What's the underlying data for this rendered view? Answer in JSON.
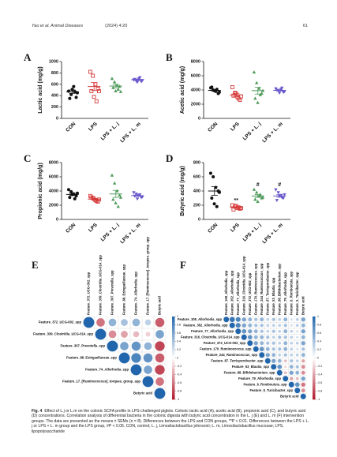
{
  "header": {
    "left": "Yao et al. Animal Diseases",
    "year": "(2024) 4:20",
    "page": "61"
  },
  "caption": {
    "label": "Fig. 4",
    "text": "Effect of L.j or L.m on the colonic SCFA profile in LPS-challenged piglets. Colonic lactic acid (A), acetic acid (B), propionic acid (C), and butyric acid (D) concentrations. Correlation analysis of differential bacteria in the colonic digesta with butyric acid concentration in the L. j (E) and L. m (F) intervention groups. The data are presented as the means ± SEMs (n = 8). Differences between the LPS and CON groups, **P < 0.01. Differences between the LPS + L. j or LPS + L. m group and the LPS group, #P < 0.05. CON, control; L. j, Limosilactobacillus johnsonii; L. m, Limosilactobacillus mucosae; LPS, lipopolysaccharide"
  },
  "chart_data": [
    {
      "type": "dotplot",
      "panel": "A",
      "ylabel": "Lactic acid (mg/g)",
      "categories": [
        "CON",
        "LPS",
        "LPS + L. j",
        "LPS + L. m"
      ],
      "ylim": [
        0,
        1000
      ],
      "yticks": [
        0,
        200,
        400,
        600,
        800,
        1000
      ],
      "groups": [
        {
          "color": "#111111",
          "marker": "circle",
          "values": [
            480,
            420,
            560,
            370,
            350,
            510,
            470,
            450
          ],
          "mean": 470,
          "sem": 30
        },
        {
          "color": "#d63a3a",
          "marker": "square",
          "values": [
            820,
            750,
            600,
            520,
            480,
            380,
            300,
            480
          ],
          "mean": 560,
          "sem": 70
        },
        {
          "color": "#4e9a5a",
          "marker": "triangle",
          "values": [
            700,
            640,
            580,
            560,
            540,
            480,
            510,
            470
          ],
          "mean": 570,
          "sem": 30
        },
        {
          "color": "#6a5acd",
          "marker": "triangle-down",
          "values": [
            680,
            660,
            700,
            650,
            690,
            640,
            720,
            670
          ],
          "mean": 680,
          "sem": 12
        }
      ]
    },
    {
      "type": "dotplot",
      "panel": "B",
      "ylabel": "Acetic acid (mg/g)",
      "categories": [
        "CON",
        "LPS",
        "LPS + L. j",
        "LPS + L. m"
      ],
      "ylim": [
        0,
        8000
      ],
      "yticks": [
        0,
        2000,
        4000,
        6000,
        8000
      ],
      "groups": [
        {
          "color": "#111111",
          "marker": "circle",
          "values": [
            4300,
            4000,
            3800,
            3500,
            4400,
            3900,
            4100,
            3700
          ],
          "mean": 3950,
          "sem": 110
        },
        {
          "color": "#d63a3a",
          "marker": "square",
          "values": [
            4400,
            3600,
            3000,
            2600,
            3200,
            3500,
            2800,
            3100
          ],
          "mean": 3300,
          "sem": 220
        },
        {
          "color": "#4e9a5a",
          "marker": "triangle",
          "values": [
            6500,
            5000,
            4200,
            3500,
            2800,
            2200,
            3300,
            3900
          ],
          "mean": 3900,
          "sem": 480
        },
        {
          "color": "#6a5acd",
          "marker": "triangle-down",
          "values": [
            4200,
            3900,
            4100,
            3700,
            4000,
            3600,
            4300,
            3800
          ],
          "mean": 3950,
          "sem": 90
        }
      ]
    },
    {
      "type": "dotplot",
      "panel": "C",
      "ylabel": "Propionic acid (mg/g)",
      "categories": [
        "CON",
        "LPS",
        "LPS + L. j",
        "LPS + L. m"
      ],
      "ylim": [
        0,
        8000
      ],
      "yticks": [
        0,
        2000,
        4000,
        6000,
        8000
      ],
      "groups": [
        {
          "color": "#111111",
          "marker": "circle",
          "values": [
            4200,
            3900,
            3600,
            3300,
            3100,
            3500,
            2900,
            3700
          ],
          "mean": 3520,
          "sem": 150
        },
        {
          "color": "#d63a3a",
          "marker": "square",
          "values": [
            3300,
            3000,
            2700,
            2500,
            3100,
            2900,
            2600,
            2800
          ],
          "mean": 2860,
          "sem": 90
        },
        {
          "color": "#4e9a5a",
          "marker": "triangle",
          "values": [
            6200,
            5100,
            4000,
            3400,
            2800,
            2300,
            1800,
            3100
          ],
          "mean": 3590,
          "sem": 490
        },
        {
          "color": "#6a5acd",
          "marker": "triangle-down",
          "values": [
            3800,
            3600,
            3400,
            3100,
            3300,
            2900,
            3500,
            3200
          ],
          "mean": 3350,
          "sem": 100
        }
      ]
    },
    {
      "type": "dotplot",
      "panel": "D",
      "ylabel": "Butyric acid (mg/g)",
      "categories": [
        "CON",
        "LPS",
        "LPS + L. j",
        "LPS + L. m"
      ],
      "ylim": [
        0,
        800
      ],
      "yticks": [
        0,
        200,
        400,
        600,
        800
      ],
      "groups": [
        {
          "color": "#111111",
          "marker": "circle",
          "values": [
            650,
            600,
            450,
            400,
            300,
            220,
            180,
            380
          ],
          "mean": 400,
          "sem": 60
        },
        {
          "color": "#d63a3a",
          "marker": "square",
          "values": [
            200,
            180,
            160,
            150,
            140,
            190,
            170,
            160
          ],
          "mean": 170,
          "sem": 8,
          "annotation": "**"
        },
        {
          "color": "#4e9a5a",
          "marker": "triangle",
          "values": [
            420,
            380,
            330,
            300,
            280,
            250,
            350,
            310
          ],
          "mean": 330,
          "sem": 20,
          "annotation": "#"
        },
        {
          "color": "#6a5acd",
          "marker": "triangle-down",
          "values": [
            420,
            380,
            340,
            300,
            270,
            330,
            310,
            350
          ],
          "mean": 330,
          "sem": 18,
          "annotation": "#"
        }
      ]
    },
    {
      "type": "corrplot",
      "panel": "E",
      "labels": [
        "Feature_372_UCG-002_spp",
        "Feature_339_Clostridia_UCG-014_spp",
        "Feature_307_Prevotella_spp",
        "Feature_88_Ezingaellaceae_spp",
        "Feature_74_Allorhodia_spp",
        "Feature_17_[Ruminococcus]_torques_group_spp",
        "Butyric acid"
      ],
      "matrix": [
        [
          1,
          -0.6,
          0.5,
          0.4,
          0.5,
          0.3,
          -0.7
        ],
        [
          1,
          -0.5,
          -0.4,
          -0.3,
          -0.2,
          0.6
        ],
        [
          1,
          0.6,
          0.7,
          0.5,
          -0.8
        ],
        [
          1,
          0.8,
          0.7,
          -0.7
        ],
        [
          1,
          0.6,
          -0.8
        ],
        [
          1,
          -0.6
        ],
        [
          1
        ]
      ],
      "colorbar_ticks": [
        1,
        0.8,
        0.6,
        0.4,
        0.2,
        0,
        -0.2,
        -0.4,
        -0.6,
        -0.8,
        -1
      ]
    },
    {
      "type": "corrplot",
      "panel": "F",
      "labels": [
        "Feature_108_Allorhodia_spp",
        "Feature_352_Allorhodia_spp",
        "Feature_77_Allorhodia_spp",
        "Feature_316_Clostridia_UCG-014_spp",
        "Feature_372_UCG-002_spp",
        "Feature_170_Ruminococcus_spp",
        "Feature_244_Ruminococcus_spp",
        "Feature_87_Terrisporobacter_spp",
        "Feature_53_Blautia_spp",
        "Feature_88_Bifidobacterium_spp",
        "Feature_79_Allorhodia_spp",
        "Feature_6_Romboutsia_spp",
        "Feature_5_Turicibacter_spp",
        "Butyric acid"
      ],
      "matrix": [
        [
          1,
          0.9,
          0.8,
          0.6,
          0.5,
          0.4,
          0.5,
          0.3,
          0.4,
          0.3,
          0.5,
          0.2,
          0.3,
          0.6
        ],
        [
          1,
          0.8,
          0.6,
          0.5,
          0.4,
          0.4,
          0.3,
          0.3,
          0.3,
          0.4,
          0.2,
          0.3,
          0.5
        ],
        [
          1,
          0.7,
          0.6,
          0.5,
          0.4,
          0.3,
          0.4,
          0.3,
          0.5,
          0.3,
          0.2,
          0.6
        ],
        [
          1,
          0.7,
          0.5,
          0.5,
          0.4,
          0.3,
          0.4,
          0.4,
          0.3,
          0.2,
          0.5
        ],
        [
          1,
          0.6,
          0.5,
          0.4,
          0.4,
          0.3,
          0.5,
          0.3,
          0.3,
          0.6
        ],
        [
          1,
          0.7,
          0.5,
          0.4,
          0.4,
          0.5,
          0.3,
          0.2,
          0.4
        ],
        [
          1,
          0.6,
          0.5,
          0.3,
          0.4,
          0.3,
          0.3,
          0.5
        ],
        [
          1,
          0.6,
          0.5,
          -0.3,
          0.4,
          0.3,
          -0.4
        ],
        [
          1,
          0.7,
          -0.2,
          0.5,
          0.4,
          -0.5
        ],
        [
          1,
          -0.3,
          0.6,
          0.5,
          -0.5
        ],
        [
          1,
          -0.4,
          -0.3,
          0.6
        ],
        [
          1,
          0.7,
          -0.6
        ],
        [
          1,
          -0.5
        ],
        [
          1
        ]
      ],
      "colorbar_ticks": [
        1,
        0.8,
        0.6,
        0.4,
        0.2,
        0,
        -0.2,
        -0.4,
        -0.6,
        -0.8,
        -1
      ]
    }
  ]
}
